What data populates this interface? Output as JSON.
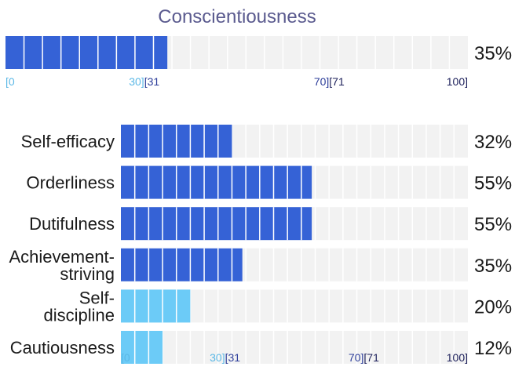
{
  "chart_data": {
    "type": "bar",
    "title": "Conscientiousness",
    "overall": {
      "value": 35,
      "label": "35%"
    },
    "categories": [
      "Self-efficacy",
      "Orderliness",
      "Dutifulness",
      "Achievement-striving",
      "Self-discipline",
      "Cautiousness"
    ],
    "category_lines": [
      [
        "Self-efficacy"
      ],
      [
        "Orderliness"
      ],
      [
        "Dutifulness"
      ],
      [
        "Achievement-",
        "striving"
      ],
      [
        "Self-",
        "discipline"
      ],
      [
        "Cautiousness"
      ]
    ],
    "values": [
      32,
      55,
      55,
      35,
      20,
      12
    ],
    "value_labels": [
      "32%",
      "55%",
      "55%",
      "35%",
      "20%",
      "12%"
    ],
    "xlim": [
      0,
      100
    ],
    "scale_labels": {
      "low": [
        "[0",
        "30]"
      ],
      "mid": [
        "[31",
        "70]"
      ],
      "high": [
        "[71",
        "100]"
      ]
    },
    "colors": {
      "high_fill": "#3562d6",
      "low_fill": "#6ccbf7",
      "track": "#f2f2f2",
      "track_segment_line": "#ffffff",
      "tick_low": "#5bb8e6",
      "tick_mid": "#2d3e9a",
      "tick_high": "#1c1f5a",
      "title": "#5b5b8f"
    }
  }
}
